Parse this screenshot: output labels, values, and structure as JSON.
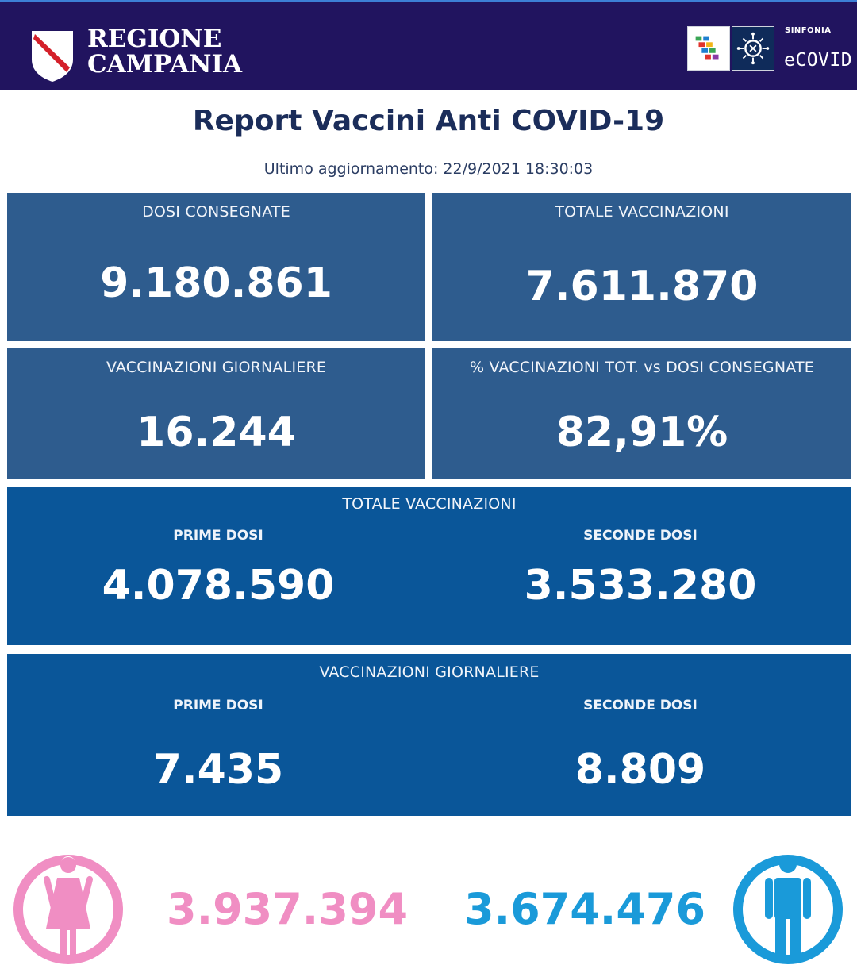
{
  "header": {
    "region_line1": "REGIONE",
    "region_line2": "CAMPANIA",
    "sinfonia_label": "SINFONIA",
    "ecovid_label": "eCOVID"
  },
  "page": {
    "title": "Report Vaccini Anti COVID-19",
    "updated": "Ultimo aggiornamento: 22/9/2021  18:30:03"
  },
  "tiles": {
    "dosi_consegnate": {
      "label": "DOSI  CONSEGNATE",
      "value": "9.180.861"
    },
    "totale_vaccinazioni": {
      "label": "TOTALE VACCINAZIONI",
      "value": "7.611.870"
    },
    "vaccinazioni_giornaliere": {
      "label": "VACCINAZIONI GIORNALIERE",
      "value": "16.244"
    },
    "percentuale": {
      "label": "% VACCINAZIONI TOT. vs DOSI CONSEGNATE",
      "value": "82,91%"
    }
  },
  "totale_breakdown": {
    "label": "TOTALE VACCINAZIONI",
    "prime_label": "PRIME DOSI",
    "prime_value": "4.078.590",
    "seconde_label": "SECONDE DOSI",
    "seconde_value": "3.533.280"
  },
  "giornaliere_breakdown": {
    "label": "VACCINAZIONI GIORNALIERE",
    "prime_label": "PRIME DOSI",
    "prime_value": "7.435",
    "seconde_label": "SECONDE DOSI",
    "seconde_value": "8.809"
  },
  "gender": {
    "female_value": "3.937.394",
    "male_value": "3.674.476",
    "female_color": "#f08ec3",
    "male_color": "#1a9ad9"
  },
  "icons": {
    "region_emblem": "shield-icon",
    "ecovid_emblem": "virus-icon",
    "female": "female-person-icon",
    "male": "male-person-icon"
  },
  "colors": {
    "header_bg": "#21145f",
    "tile_bg": "#2e5c8e",
    "tile_dark_bg": "#0a5699",
    "title_color": "#1b2d5a"
  }
}
